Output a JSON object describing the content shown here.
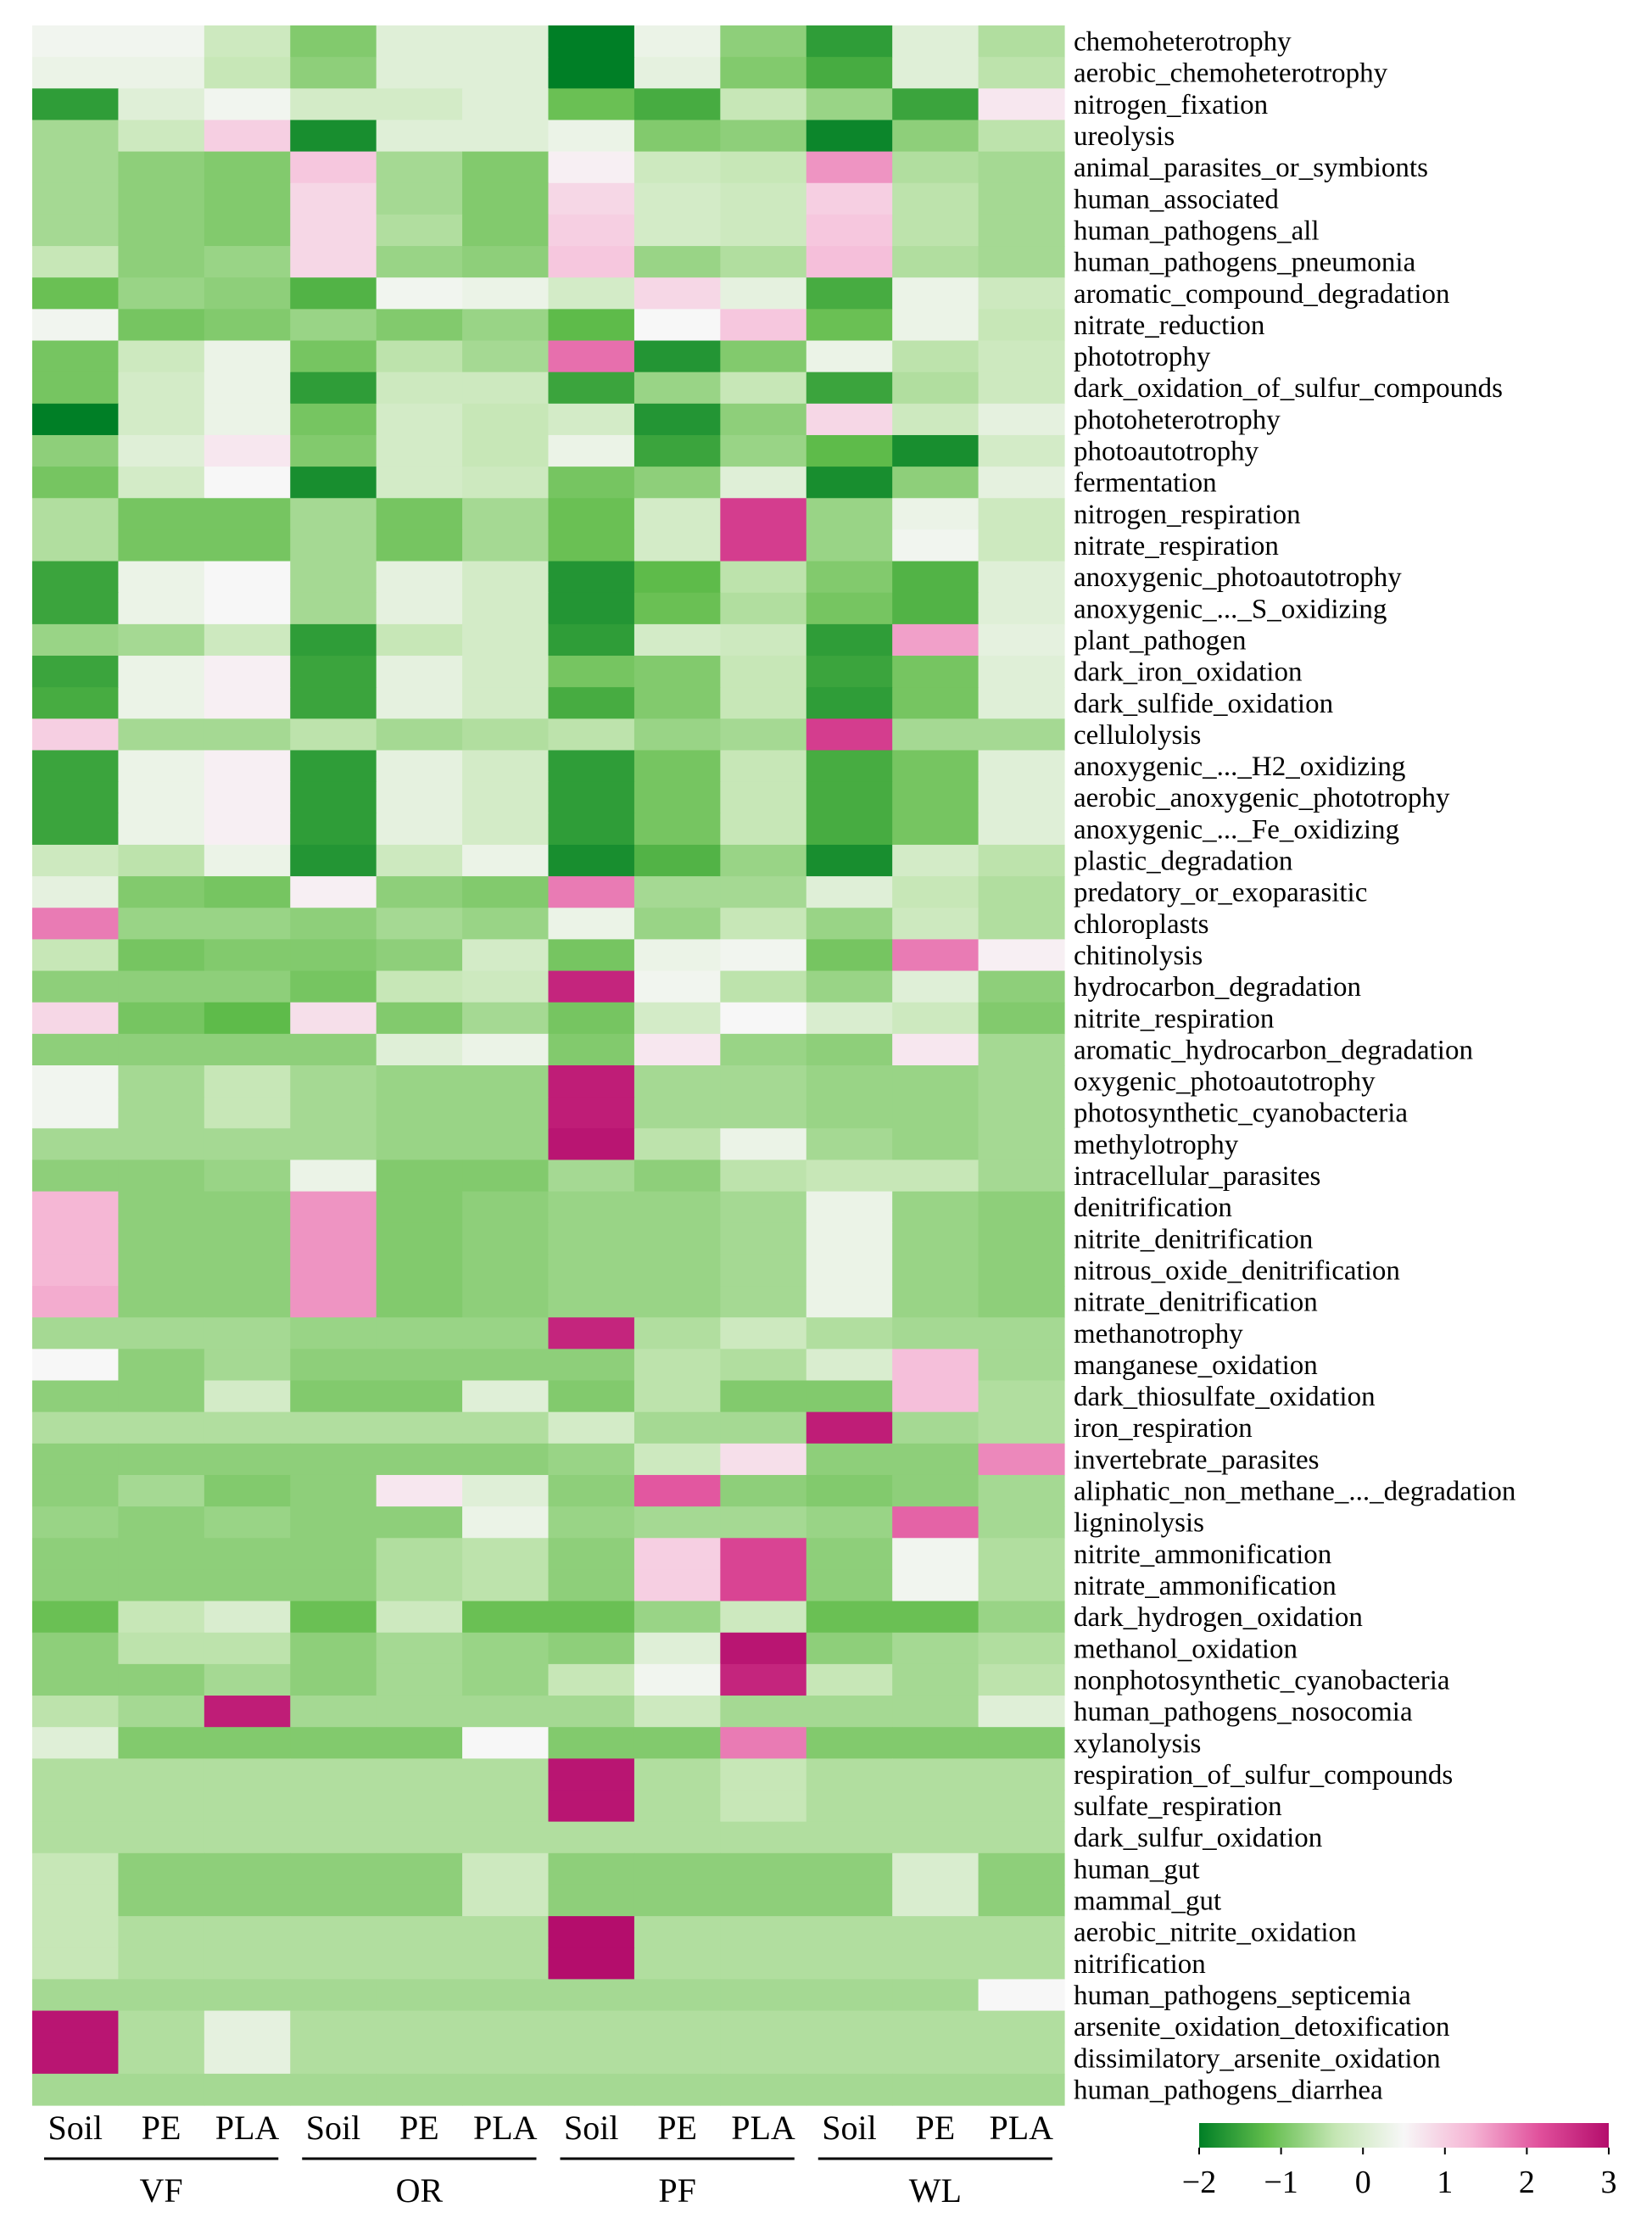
{
  "chart_data": {
    "type": "heatmap",
    "columns": [
      "Soil",
      "PE",
      "PLA",
      "Soil",
      "PE",
      "PLA",
      "Soil",
      "PE",
      "PLA",
      "Soil",
      "PE",
      "PLA"
    ],
    "groups": [
      {
        "name": "VF",
        "span": 3
      },
      {
        "name": "OR",
        "span": 3
      },
      {
        "name": "PF",
        "span": 3
      },
      {
        "name": "WL",
        "span": 3
      }
    ],
    "rows": [
      "chemoheterotrophy",
      "aerobic_chemoheterotrophy",
      "nitrogen_fixation",
      "ureolysis",
      "animal_parasites_or_symbionts",
      "human_associated",
      "human_pathogens_all",
      "human_pathogens_pneumonia",
      "aromatic_compound_degradation",
      "nitrate_reduction",
      "phototrophy",
      "dark_oxidation_of_sulfur_compounds",
      "photoheterotrophy",
      "photoautotrophy",
      "fermentation",
      "nitrogen_respiration",
      "nitrate_respiration",
      "anoxygenic_photoautotrophy",
      "anoxygenic_..._S_oxidizing",
      "plant_pathogen",
      "dark_iron_oxidation",
      "dark_sulfide_oxidation",
      "cellulolysis",
      "anoxygenic_..._H2_oxidizing",
      "aerobic_anoxygenic_phototrophy",
      "anoxygenic_..._Fe_oxidizing",
      "plastic_degradation",
      "predatory_or_exoparasitic",
      "chloroplasts",
      "chitinolysis",
      "hydrocarbon_degradation",
      "nitrite_respiration",
      "aromatic_hydrocarbon_degradation",
      "oxygenic_photoautotrophy",
      "photosynthetic_cyanobacteria",
      "methylotrophy",
      "intracellular_parasites",
      "denitrification",
      "nitrite_denitrification",
      "nitrous_oxide_denitrification",
      "nitrate_denitrification",
      "methanotrophy",
      "manganese_oxidation",
      "dark_thiosulfate_oxidation",
      "iron_respiration",
      "invertebrate_parasites",
      "aliphatic_non_methane_..._degradation",
      "ligninolysis",
      "nitrite_ammonification",
      "nitrate_ammonification",
      "dark_hydrogen_oxidation",
      "methanol_oxidation",
      "nonphotosynthetic_cyanobacteria",
      "human_pathogens_nosocomia",
      "xylanolysis",
      "respiration_of_sulfur_compounds",
      "sulfate_respiration",
      "dark_sulfur_oxidation",
      "human_gut",
      "mammal_gut",
      "aerobic_nitrite_oxidation",
      "nitrification",
      "human_pathogens_septicemia",
      "arsenite_oxidation_detoxification",
      "dissimilatory_arsenite_oxidation",
      "human_pathogens_diarrhea"
    ],
    "values": [
      [
        0.4,
        0.4,
        -0.2,
        -0.9,
        0.1,
        0.1,
        -2.3,
        0.3,
        -0.8,
        -1.6,
        0.1,
        -0.5
      ],
      [
        0.3,
        0.3,
        -0.3,
        -0.8,
        0.1,
        0.1,
        -2.4,
        0.2,
        -0.9,
        -1.4,
        0.1,
        -0.4
      ],
      [
        -1.6,
        0.1,
        0.4,
        -0.1,
        -0.1,
        0.1,
        -1.1,
        -1.4,
        -0.3,
        -0.7,
        -1.5,
        0.7
      ],
      [
        -0.6,
        -0.2,
        1.0,
        -1.8,
        0.1,
        0.1,
        0.3,
        -0.9,
        -0.8,
        -1.9,
        -0.8,
        -0.4
      ],
      [
        -0.6,
        -0.8,
        -0.9,
        1.1,
        -0.6,
        -0.9,
        0.6,
        -0.2,
        -0.3,
        1.6,
        -0.5,
        -0.6
      ],
      [
        -0.6,
        -0.8,
        -0.9,
        0.9,
        -0.6,
        -0.9,
        0.9,
        -0.1,
        -0.2,
        1.0,
        -0.4,
        -0.6
      ],
      [
        -0.6,
        -0.8,
        -0.9,
        0.9,
        -0.5,
        -0.9,
        1.0,
        -0.1,
        -0.2,
        1.1,
        -0.4,
        -0.6
      ],
      [
        -0.3,
        -0.8,
        -0.7,
        0.9,
        -0.7,
        -0.8,
        1.1,
        -0.7,
        -0.5,
        1.2,
        -0.5,
        -0.6
      ],
      [
        -1.1,
        -0.7,
        -0.8,
        -1.3,
        0.4,
        0.3,
        -0.1,
        0.9,
        0.2,
        -1.4,
        0.3,
        -0.2
      ],
      [
        0.4,
        -1.0,
        -0.9,
        -0.7,
        -0.9,
        -0.7,
        -1.2,
        0.5,
        1.1,
        -1.1,
        0.3,
        -0.3
      ],
      [
        -1.0,
        -0.2,
        0.3,
        -1.0,
        -0.4,
        -0.6,
        1.9,
        -1.7,
        -0.9,
        0.3,
        -0.4,
        -0.2
      ],
      [
        -1.0,
        -0.1,
        0.3,
        -1.6,
        -0.2,
        -0.2,
        -1.5,
        -0.7,
        -0.3,
        -1.5,
        -0.5,
        -0.2
      ],
      [
        -2.2,
        -0.1,
        0.3,
        -1.0,
        -0.1,
        -0.3,
        -0.1,
        -1.7,
        -0.8,
        0.9,
        -0.2,
        0.2
      ],
      [
        -0.8,
        0.1,
        0.7,
        -0.9,
        -0.1,
        -0.3,
        0.3,
        -1.5,
        -0.7,
        -1.2,
        -1.8,
        -0.1
      ],
      [
        -1.0,
        -0.1,
        0.5,
        -1.8,
        -0.1,
        -0.2,
        -1.0,
        -0.8,
        0.1,
        -1.8,
        -0.8,
        0.2
      ],
      [
        -0.5,
        -1.0,
        -1.0,
        -0.6,
        -1.0,
        -0.6,
        -1.1,
        -0.1,
        2.4,
        -0.7,
        0.3,
        -0.2
      ],
      [
        -0.5,
        -1.0,
        -1.0,
        -0.6,
        -1.0,
        -0.6,
        -1.1,
        -0.1,
        2.4,
        -0.7,
        0.4,
        -0.2
      ],
      [
        -1.5,
        0.3,
        0.5,
        -0.6,
        0.2,
        -0.1,
        -1.7,
        -1.2,
        -0.4,
        -0.9,
        -1.3,
        0.1
      ],
      [
        -1.5,
        0.3,
        0.5,
        -0.6,
        0.2,
        -0.1,
        -1.7,
        -1.1,
        -0.5,
        -1.0,
        -1.3,
        0.1
      ],
      [
        -0.7,
        -0.6,
        -0.2,
        -1.6,
        -0.3,
        -0.1,
        -1.6,
        -0.1,
        -0.2,
        -1.6,
        1.5,
        0.2
      ],
      [
        -1.5,
        0.3,
        0.6,
        -1.5,
        0.2,
        -0.1,
        -1.0,
        -0.9,
        -0.3,
        -1.5,
        -1.0,
        0.1
      ],
      [
        -1.4,
        0.3,
        0.6,
        -1.5,
        0.2,
        -0.1,
        -1.4,
        -0.9,
        -0.3,
        -1.6,
        -1.0,
        0.1
      ],
      [
        1.0,
        -0.6,
        -0.6,
        -0.4,
        -0.6,
        -0.5,
        -0.4,
        -0.7,
        -0.6,
        2.4,
        -0.6,
        -0.6
      ],
      [
        -1.5,
        0.3,
        0.6,
        -1.6,
        0.2,
        -0.1,
        -1.6,
        -1.0,
        -0.3,
        -1.4,
        -1.0,
        0.1
      ],
      [
        -1.5,
        0.3,
        0.6,
        -1.6,
        0.2,
        -0.1,
        -1.6,
        -1.0,
        -0.3,
        -1.4,
        -1.0,
        0.1
      ],
      [
        -1.5,
        0.3,
        0.6,
        -1.6,
        0.2,
        -0.1,
        -1.6,
        -1.0,
        -0.3,
        -1.4,
        -1.0,
        0.1
      ],
      [
        -0.2,
        -0.4,
        0.3,
        -1.7,
        -0.2,
        0.3,
        -1.8,
        -1.3,
        -0.7,
        -1.8,
        -0.1,
        -0.4
      ],
      [
        0.2,
        -0.9,
        -1.0,
        0.6,
        -0.8,
        -0.9,
        1.8,
        -0.6,
        -0.6,
        0.1,
        -0.3,
        -0.5
      ],
      [
        1.8,
        -0.7,
        -0.7,
        -0.8,
        -0.6,
        -0.7,
        0.3,
        -0.7,
        -0.3,
        -0.7,
        -0.2,
        -0.5
      ],
      [
        -0.3,
        -1.0,
        -0.9,
        -0.9,
        -0.8,
        -0.1,
        -1.0,
        0.3,
        0.4,
        -1.0,
        1.8,
        0.6
      ],
      [
        -0.8,
        -0.8,
        -0.8,
        -1.0,
        -0.3,
        -0.2,
        2.7,
        0.4,
        -0.4,
        -0.7,
        0.1,
        -0.8
      ],
      [
        0.9,
        -1.0,
        -1.2,
        0.8,
        -0.9,
        -0.6,
        -1.0,
        -0.1,
        0.5,
        0.0,
        -0.2,
        -0.9
      ],
      [
        -0.8,
        -0.8,
        -0.8,
        -0.8,
        0.1,
        0.3,
        -0.9,
        0.7,
        -0.7,
        -0.8,
        0.7,
        -0.6
      ],
      [
        0.4,
        -0.6,
        -0.3,
        -0.6,
        -0.7,
        -0.7,
        2.8,
        -0.6,
        -0.6,
        -0.7,
        -0.7,
        -0.6
      ],
      [
        0.4,
        -0.6,
        -0.3,
        -0.6,
        -0.7,
        -0.7,
        2.8,
        -0.6,
        -0.6,
        -0.7,
        -0.7,
        -0.6
      ],
      [
        -0.6,
        -0.6,
        -0.6,
        -0.6,
        -0.7,
        -0.7,
        2.9,
        -0.4,
        0.3,
        -0.6,
        -0.7,
        -0.6
      ],
      [
        -0.8,
        -0.8,
        -0.7,
        0.3,
        -0.9,
        -0.9,
        -0.6,
        -0.8,
        -0.4,
        -0.3,
        -0.3,
        -0.6
      ],
      [
        1.3,
        -0.8,
        -0.8,
        1.6,
        -0.9,
        -0.8,
        -0.7,
        -0.7,
        -0.6,
        0.3,
        -0.7,
        -0.8
      ],
      [
        1.3,
        -0.8,
        -0.8,
        1.6,
        -0.9,
        -0.8,
        -0.7,
        -0.7,
        -0.6,
        0.3,
        -0.7,
        -0.8
      ],
      [
        1.3,
        -0.8,
        -0.8,
        1.6,
        -0.9,
        -0.8,
        -0.7,
        -0.7,
        -0.6,
        0.3,
        -0.7,
        -0.8
      ],
      [
        1.4,
        -0.8,
        -0.8,
        1.6,
        -0.9,
        -0.8,
        -0.7,
        -0.7,
        -0.6,
        0.3,
        -0.7,
        -0.8
      ],
      [
        -0.6,
        -0.6,
        -0.6,
        -0.7,
        -0.7,
        -0.7,
        2.7,
        -0.5,
        -0.2,
        -0.5,
        -0.6,
        -0.6
      ],
      [
        0.5,
        -0.8,
        -0.6,
        -0.8,
        -0.8,
        -0.8,
        -0.8,
        -0.4,
        -0.5,
        0.0,
        1.2,
        -0.6
      ],
      [
        -0.8,
        -0.8,
        -0.1,
        -0.9,
        -0.9,
        0.1,
        -0.9,
        -0.4,
        -0.9,
        -0.9,
        1.2,
        -0.5
      ],
      [
        -0.5,
        -0.5,
        -0.5,
        -0.5,
        -0.5,
        -0.5,
        -0.1,
        -0.6,
        -0.6,
        2.8,
        -0.6,
        -0.5
      ],
      [
        -0.8,
        -0.8,
        -0.8,
        -0.8,
        -0.8,
        -0.8,
        -0.7,
        -0.2,
        0.8,
        -0.8,
        -0.8,
        1.7
      ],
      [
        -0.8,
        -0.6,
        -0.9,
        -0.8,
        0.7,
        0.1,
        -0.8,
        2.1,
        -0.8,
        -0.9,
        -0.8,
        -0.6
      ],
      [
        -0.7,
        -0.8,
        -0.7,
        -0.8,
        -0.8,
        0.3,
        -0.7,
        -0.6,
        -0.6,
        -0.7,
        2.0,
        -0.6
      ],
      [
        -0.8,
        -0.8,
        -0.8,
        -0.8,
        -0.5,
        -0.4,
        -0.8,
        1.0,
        2.3,
        -0.8,
        0.4,
        -0.5
      ],
      [
        -0.8,
        -0.8,
        -0.8,
        -0.8,
        -0.5,
        -0.4,
        -0.8,
        1.0,
        2.3,
        -0.8,
        0.4,
        -0.5
      ],
      [
        -1.1,
        -0.3,
        0.0,
        -1.1,
        -0.2,
        -1.1,
        -1.1,
        -0.7,
        -0.2,
        -1.1,
        -1.1,
        -0.7
      ],
      [
        -0.8,
        -0.4,
        -0.4,
        -0.8,
        -0.6,
        -0.7,
        -0.8,
        0.1,
        2.9,
        -0.8,
        -0.6,
        -0.5
      ],
      [
        -0.8,
        -0.8,
        -0.6,
        -0.8,
        -0.6,
        -0.7,
        -0.3,
        0.4,
        2.7,
        -0.3,
        -0.6,
        -0.4
      ],
      [
        -0.4,
        -0.6,
        2.8,
        -0.6,
        -0.6,
        -0.6,
        -0.6,
        -0.2,
        -0.6,
        -0.6,
        -0.6,
        0.1
      ],
      [
        0.1,
        -0.9,
        -0.9,
        -0.9,
        -0.9,
        0.5,
        -0.9,
        -0.9,
        1.8,
        -0.9,
        -0.9,
        -0.9
      ],
      [
        -0.5,
        -0.5,
        -0.5,
        -0.5,
        -0.5,
        -0.5,
        2.9,
        -0.5,
        -0.3,
        -0.5,
        -0.5,
        -0.5
      ],
      [
        -0.5,
        -0.5,
        -0.5,
        -0.5,
        -0.5,
        -0.5,
        2.9,
        -0.5,
        -0.3,
        -0.5,
        -0.5,
        -0.5
      ],
      [
        -0.5,
        -0.5,
        -0.5,
        -0.5,
        -0.5,
        -0.5,
        -0.5,
        -0.5,
        -0.5,
        -0.5,
        -0.5,
        -0.5
      ],
      [
        -0.3,
        -0.8,
        -0.8,
        -0.8,
        -0.8,
        -0.2,
        -0.8,
        -0.8,
        -0.8,
        -0.8,
        0.0,
        -0.8
      ],
      [
        -0.3,
        -0.8,
        -0.8,
        -0.8,
        -0.8,
        -0.2,
        -0.8,
        -0.8,
        -0.8,
        -0.8,
        0.0,
        -0.8
      ],
      [
        -0.3,
        -0.5,
        -0.5,
        -0.5,
        -0.5,
        -0.5,
        3.0,
        -0.5,
        -0.5,
        -0.5,
        -0.5,
        -0.5
      ],
      [
        -0.3,
        -0.5,
        -0.5,
        -0.5,
        -0.5,
        -0.5,
        3.0,
        -0.5,
        -0.5,
        -0.5,
        -0.5,
        -0.5
      ],
      [
        -0.6,
        -0.6,
        -0.6,
        -0.6,
        -0.6,
        -0.6,
        -0.6,
        -0.6,
        -0.6,
        -0.6,
        -0.6,
        0.5
      ],
      [
        2.9,
        -0.5,
        0.2,
        -0.5,
        -0.5,
        -0.5,
        -0.5,
        -0.5,
        -0.5,
        -0.5,
        -0.5,
        -0.5
      ],
      [
        2.9,
        -0.5,
        0.2,
        -0.5,
        -0.5,
        -0.5,
        -0.5,
        -0.5,
        -0.5,
        -0.5,
        -0.5,
        -0.5
      ],
      [
        -0.6,
        -0.6,
        -0.6,
        -0.6,
        -0.6,
        -0.6,
        -0.6,
        -0.6,
        -0.6,
        -0.6,
        -0.6,
        -0.6
      ]
    ],
    "colorbar": {
      "min": -2,
      "max": 3,
      "ticks": [
        -2,
        -1,
        0,
        1,
        2,
        3
      ],
      "tick_labels": [
        "−2",
        "−1",
        "0",
        "1",
        "2",
        "3"
      ],
      "colors": [
        "#007f26",
        "#62bd4c",
        "#c5e6b4",
        "#f7f7f7",
        "#f5b4d4",
        "#e04f9b",
        "#b40d6c"
      ]
    }
  }
}
